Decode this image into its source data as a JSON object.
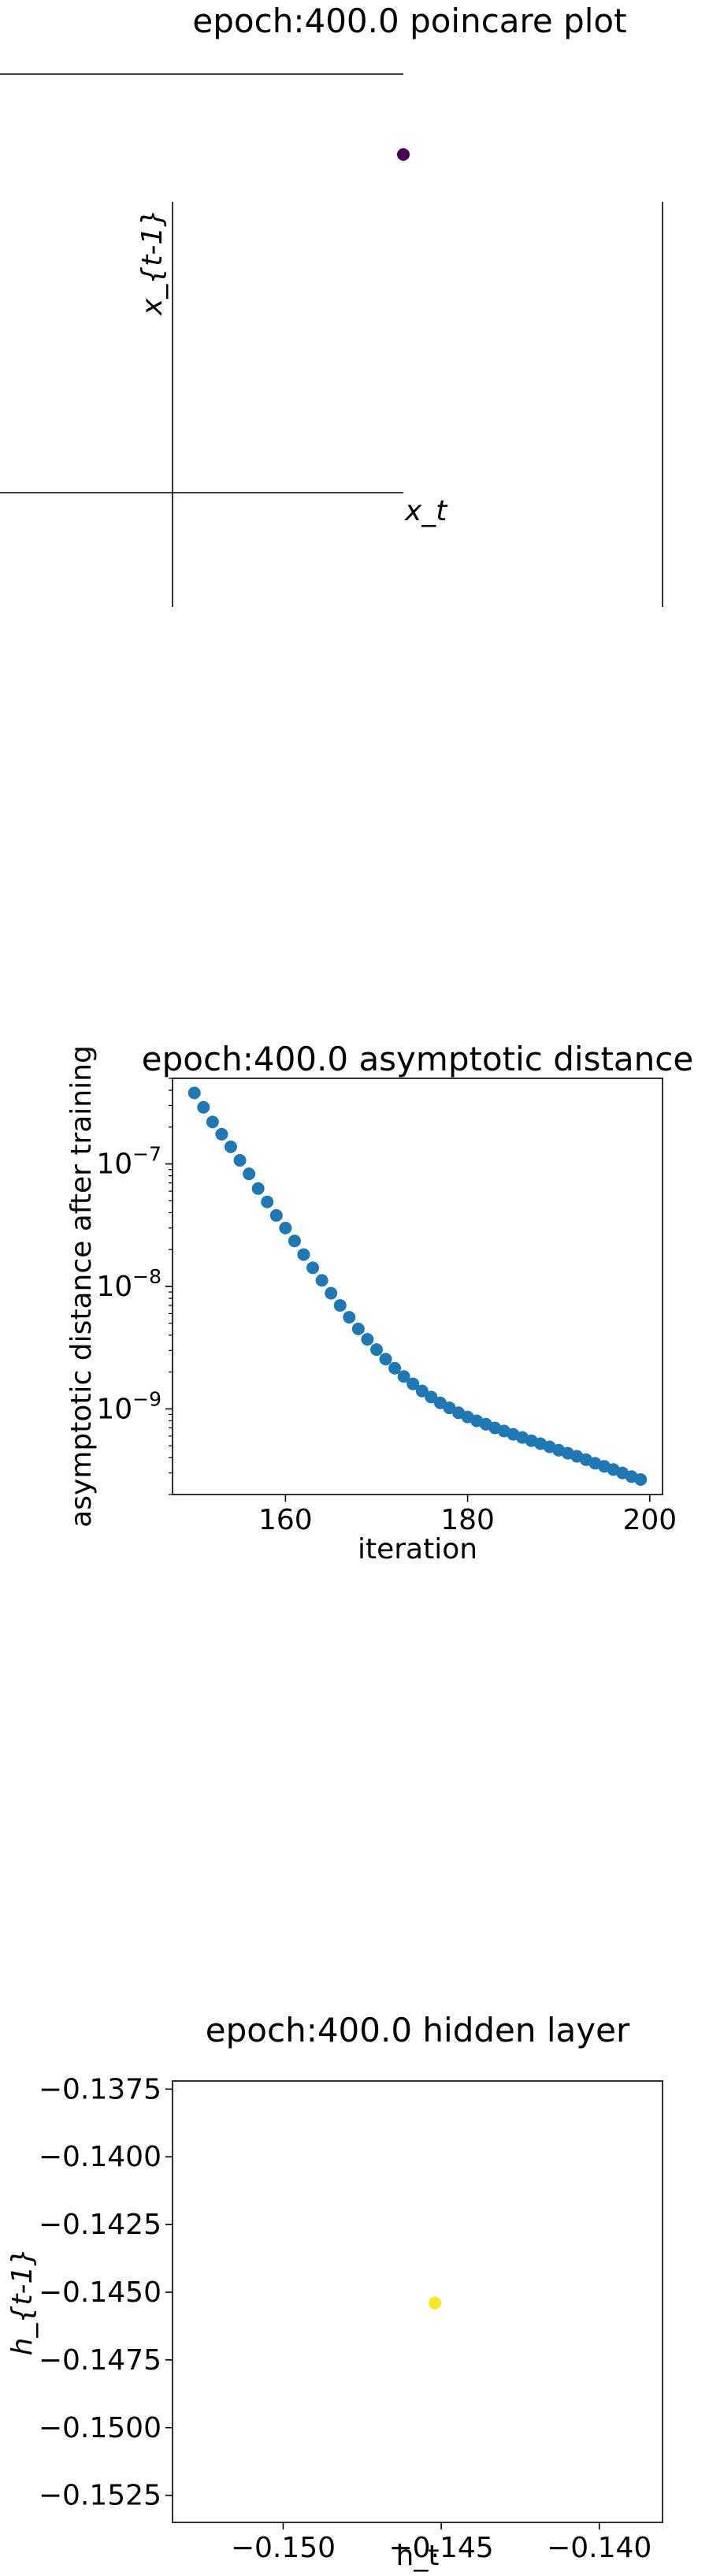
{
  "colors": {
    "background": "#ffffff",
    "axis": "#000000",
    "marker_purple": "#440154",
    "marker_blue": "#1f77b4",
    "marker_yellow": "#fde725"
  },
  "chart_data": [
    {
      "type": "scatter",
      "title": "epoch:400.0 poincare plot",
      "xlabel": "x_t",
      "ylabel": "x_{t-1}",
      "axes_style": "centered-spines",
      "grid": false,
      "series": [
        {
          "color": "#440154",
          "points": [
            {
              "x": 1.0,
              "y": 1.0
            }
          ]
        }
      ]
    },
    {
      "type": "scatter",
      "title": "epoch:400.0 asymptotic distance",
      "xlabel": "iteration",
      "ylabel": "asymptotic distance after training",
      "yscale": "log",
      "grid": false,
      "xlim": [
        147.6,
        201.4
      ],
      "ylim": [
        2e-10,
        5e-07
      ],
      "x_ticks": [
        160,
        180,
        200
      ],
      "x_tick_labels": [
        "160",
        "180",
        "200"
      ],
      "y_ticks": [
        1e-09,
        1e-08,
        1e-07
      ],
      "y_tick_labels": [
        {
          "base": "10",
          "exp": "−9"
        },
        {
          "base": "10",
          "exp": "−8"
        },
        {
          "base": "10",
          "exp": "−7"
        }
      ],
      "series": [
        {
          "color": "#1f77b4",
          "x": [
            150,
            151,
            152,
            153,
            154,
            155,
            156,
            157,
            158,
            159,
            160,
            161,
            162,
            163,
            164,
            165,
            166,
            167,
            168,
            169,
            170,
            171,
            172,
            173,
            174,
            175,
            176,
            177,
            178,
            179,
            180,
            181,
            182,
            183,
            184,
            185,
            186,
            187,
            188,
            189,
            190,
            191,
            192,
            193,
            194,
            195,
            196,
            197,
            198,
            199
          ],
          "y": [
            3.8e-07,
            2.9e-07,
            2.2e-07,
            1.75e-07,
            1.38e-07,
            1.07e-07,
            8.3e-08,
            6.3e-08,
            4.9e-08,
            3.8e-08,
            3e-08,
            2.35e-08,
            1.82e-08,
            1.42e-08,
            1.12e-08,
            8.8e-09,
            7e-09,
            5.6e-09,
            4.5e-09,
            3.7e-09,
            3.05e-09,
            2.55e-09,
            2.15e-09,
            1.84e-09,
            1.6e-09,
            1.4e-09,
            1.25e-09,
            1.12e-09,
            1.02e-09,
            9.3e-10,
            8.6e-10,
            8e-10,
            7.5e-10,
            7e-10,
            6.6e-10,
            6.2e-10,
            5.85e-10,
            5.5e-10,
            5.2e-10,
            4.9e-10,
            4.6e-10,
            4.35e-10,
            4.1e-10,
            3.85e-10,
            3.6e-10,
            3.4e-10,
            3.2e-10,
            3e-10,
            2.8e-10,
            2.65e-10
          ]
        }
      ]
    },
    {
      "type": "scatter",
      "title": "epoch:400.0 hidden layer",
      "xlabel": "h_t",
      "ylabel": "h_{t-1}",
      "grid": false,
      "xlim": [
        -0.1535,
        -0.138
      ],
      "ylim": [
        -0.1535,
        -0.1372
      ],
      "x_ticks": [
        -0.15,
        -0.145,
        -0.14
      ],
      "x_tick_labels": [
        "−0.150",
        "−0.145",
        "−0.140"
      ],
      "y_ticks": [
        -0.1375,
        -0.14,
        -0.1425,
        -0.145,
        -0.1475,
        -0.15,
        -0.1525
      ],
      "y_tick_labels": [
        "−0.1375",
        "−0.1400",
        "−0.1425",
        "−0.1450",
        "−0.1475",
        "−0.1500",
        "−0.1525"
      ],
      "series": [
        {
          "color": "#fde725",
          "points": [
            {
              "x": -0.1452,
              "y": -0.1454
            }
          ]
        }
      ]
    }
  ]
}
